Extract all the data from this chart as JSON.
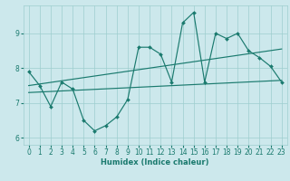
{
  "xlabel": "Humidex (Indice chaleur)",
  "background_color": "#cce8ec",
  "line_color": "#1a7a6e",
  "x_values": [
    0,
    1,
    2,
    3,
    4,
    5,
    6,
    7,
    8,
    9,
    10,
    11,
    12,
    13,
    14,
    15,
    16,
    17,
    18,
    19,
    20,
    21,
    22,
    23
  ],
  "main_line_y": [
    7.9,
    7.5,
    6.9,
    7.6,
    7.4,
    6.5,
    6.2,
    6.35,
    6.6,
    7.1,
    8.6,
    8.6,
    8.4,
    7.6,
    9.3,
    9.6,
    7.6,
    9.0,
    8.85,
    9.0,
    8.5,
    8.3,
    8.05,
    7.6
  ],
  "trend1_x": [
    0,
    23
  ],
  "trend1_y": [
    7.5,
    8.55
  ],
  "trend2_x": [
    0,
    23
  ],
  "trend2_y": [
    7.3,
    7.65
  ],
  "ylim": [
    5.8,
    9.8
  ],
  "xlim": [
    -0.5,
    23.5
  ],
  "yticks": [
    6,
    7,
    8,
    9
  ],
  "xticks": [
    0,
    1,
    2,
    3,
    4,
    5,
    6,
    7,
    8,
    9,
    10,
    11,
    12,
    13,
    14,
    15,
    16,
    17,
    18,
    19,
    20,
    21,
    22,
    23
  ],
  "grid_color": "#9ecece",
  "marker": "D",
  "marker_size": 2.0,
  "linewidth": 0.85,
  "tick_fontsize": 5.5,
  "xlabel_fontsize": 6.0
}
